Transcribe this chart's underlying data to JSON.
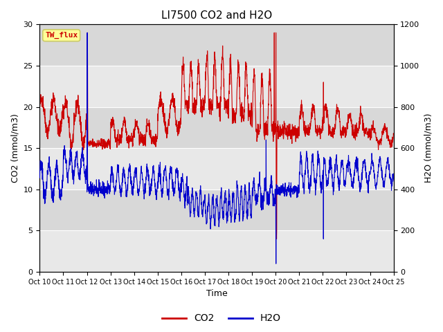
{
  "title": "LI7500 CO2 and H2O",
  "xlabel": "Time",
  "ylabel_left": "CO2 (mmol/m3)",
  "ylabel_right": "H2O (mmol/m3)",
  "ylim_left": [
    0,
    30
  ],
  "ylim_right": [
    0,
    1200
  ],
  "co2_color": "#cc0000",
  "h2o_color": "#0000cc",
  "bg_color": "#dcdcdc",
  "fig_bg_color": "#ffffff",
  "text_color_box": "#cc0000",
  "box_fill": "#ffff99",
  "box_edge": "#cccc66",
  "box_label": "TW_flux",
  "legend_label_co2": "CO2",
  "legend_label_h2o": "H2O",
  "line_width": 0.8,
  "yticks_left": [
    0,
    5,
    10,
    15,
    20,
    25,
    30
  ],
  "yticks_right": [
    0,
    200,
    400,
    600,
    800,
    1000,
    1200
  ],
  "hband_colors": [
    "#e8e8e8",
    "#d0d0d0"
  ],
  "xtick_labels": [
    "Oct 10",
    "Oct 11",
    "Oct 12",
    "Oct 13",
    "Oct 14",
    "Oct 15",
    "Oct 16",
    "Oct 17",
    "Oct 18",
    "Oct 19",
    "Oct 20",
    "Oct 21",
    "Oct 22",
    "Oct 23",
    "Oct 24",
    "Oct 25"
  ]
}
